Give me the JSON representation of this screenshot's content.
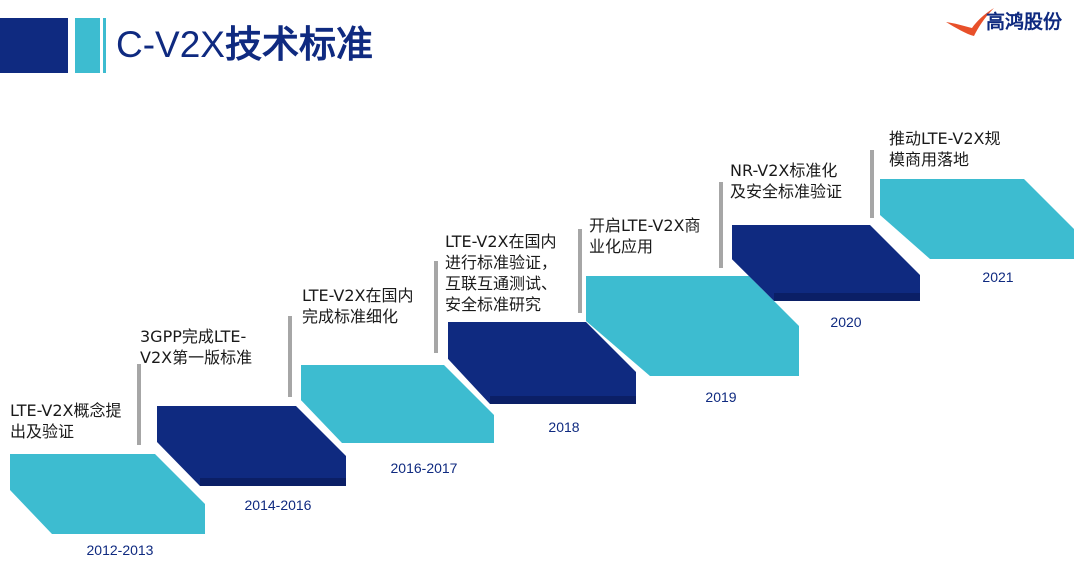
{
  "header": {
    "title_latin": "C-V2X",
    "title_cjk": "技术标准",
    "logo_text": "高鸿股份",
    "accent_dark": "#0f2a80",
    "accent_light": "#3dbcd0",
    "logo_red": "#e8502a"
  },
  "steps": [
    {
      "year": "2012-2013",
      "lines": [
        "LTE-V2X概念提",
        "出及验证"
      ],
      "tone": "light"
    },
    {
      "year": "2014-2016",
      "lines": [
        "3GPP完成LTE-",
        "V2X第一版标准"
      ],
      "tone": "dark"
    },
    {
      "year": "2016-2017",
      "lines": [
        "LTE-V2X在国内",
        "完成标准细化"
      ],
      "tone": "light"
    },
    {
      "year": "2018",
      "lines": [
        "LTE-V2X在国内",
        "进行标准验证，",
        "互联互通测试、",
        "安全标准研究"
      ],
      "tone": "dark"
    },
    {
      "year": "2019",
      "lines": [
        "开启LTE-V2X商",
        "业化应用"
      ],
      "tone": "light"
    },
    {
      "year": "2020",
      "lines": [
        "NR-V2X标准化",
        "及安全标准验证"
      ],
      "tone": "dark"
    },
    {
      "year": "2021",
      "lines": [
        "推动LTE-V2X规",
        "模商用落地"
      ],
      "tone": "light"
    }
  ]
}
